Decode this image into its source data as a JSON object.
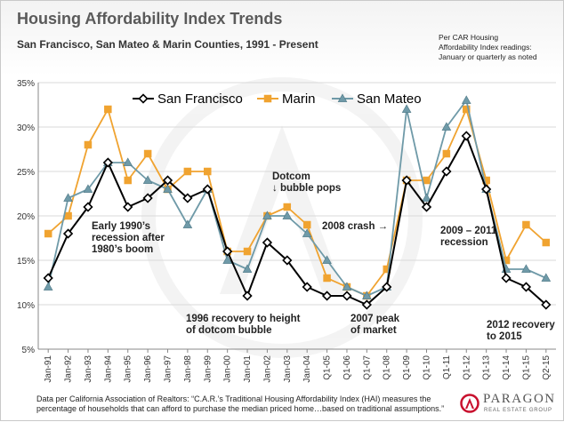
{
  "header": {
    "title": "Housing Affordability Index Trends",
    "subtitle": "San Francisco,  San Mateo & Marin Counties, 1991 - Present",
    "note_lines": [
      "Per CAR Housing",
      "Affordability Index readings:",
      "January or quarterly as noted"
    ]
  },
  "footer": {
    "lines": [
      "Data per California Association of Realtors: “C.A.R.’s Traditional Housing Affordability Index (HAI) measures the",
      "percentage of households that can afford to purchase the median priced home…based on traditional assumptions.”"
    ]
  },
  "logo": {
    "name": "PARAGON",
    "tagline": "REAL ESTATE GROUP",
    "accent": "#c8102e"
  },
  "chart_data": {
    "type": "line",
    "title": "Housing Affordability Index Trends",
    "subtitle": "San Francisco,  San Mateo & Marin Counties, 1991 - Present",
    "xlabel": "",
    "ylabel": "",
    "categories": [
      "Jan-91",
      "Jan-92",
      "Jan-93",
      "Jan-94",
      "Jan-95",
      "Jan-96",
      "Jan-97",
      "Jan-98",
      "Jan-99",
      "Jan-00",
      "Jan-01",
      "Jan-02",
      "Jan-03",
      "Jan-04",
      "Q1-05",
      "Q1-06",
      "Q1-07",
      "Q1-08",
      "Q1-09",
      "Q1-10",
      "Q1-11",
      "Q1-12",
      "Q1-13",
      "Q1-14",
      "Q1-15",
      "Q2-15"
    ],
    "y_ticks": [
      "5%",
      "10%",
      "15%",
      "20%",
      "25%",
      "30%",
      "35%"
    ],
    "ylim": [
      5,
      35
    ],
    "grid": true,
    "legend_position": "top-left",
    "series": [
      {
        "name": "San Francisco",
        "color": "#000000",
        "marker": "diamond",
        "values": [
          13,
          18,
          21,
          26,
          21,
          22,
          24,
          22,
          23,
          16,
          11,
          17,
          15,
          12,
          11,
          11,
          10,
          12,
          24,
          21,
          25,
          29,
          23,
          13,
          12,
          10
        ]
      },
      {
        "name": "Marin",
        "color": "#f0a330",
        "marker": "square",
        "values": [
          18,
          20,
          28,
          32,
          24,
          27,
          23,
          25,
          25,
          16,
          16,
          20,
          21,
          19,
          13,
          12,
          11,
          14,
          24,
          24,
          27,
          32,
          24,
          15,
          19,
          17
        ]
      },
      {
        "name": "San Mateo",
        "color": "#6f9aa8",
        "marker": "triangle",
        "values": [
          12,
          22,
          23,
          26,
          26,
          24,
          23,
          19,
          23,
          15,
          14,
          20,
          20,
          18,
          15,
          12,
          11,
          12,
          32,
          22,
          30,
          33,
          23,
          14,
          14,
          13
        ]
      }
    ],
    "annotations": [
      {
        "lines": [
          "Early 1990’s",
          "recession after",
          "1980’s boom"
        ]
      },
      {
        "lines": [
          "Dotcom",
          "↓ bubble pops"
        ]
      },
      {
        "lines": [
          "2008 crash →"
        ]
      },
      {
        "lines": [
          "2009 – 2011",
          "recession"
        ]
      },
      {
        "lines": [
          "1996 recovery to height",
          "of dotcom bubble"
        ]
      },
      {
        "lines": [
          "2007 peak",
          "of market"
        ]
      },
      {
        "lines": [
          "2012 recovery",
          "to 2015"
        ]
      }
    ]
  }
}
